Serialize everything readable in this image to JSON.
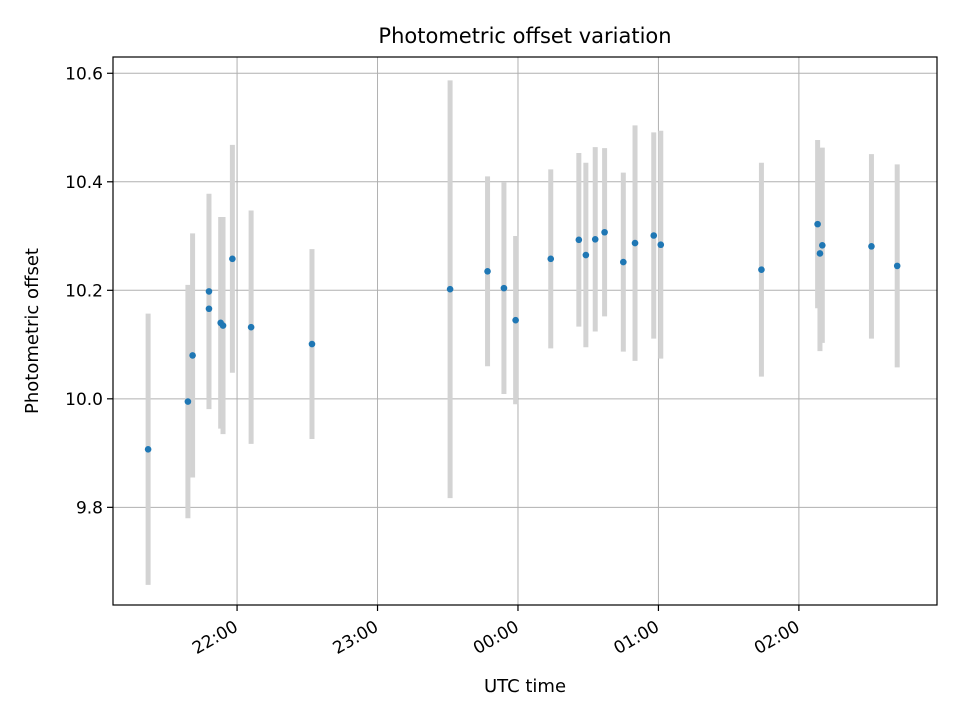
{
  "chart_data": {
    "type": "scatter",
    "title": "Photometric offset variation",
    "xlabel": "UTC time",
    "ylabel": "Photometric offset",
    "x_axis_format": "time (HH:MM, UTC)",
    "xlim": [
      "21:07",
      "02:59"
    ],
    "ylim": [
      9.62,
      10.63
    ],
    "x_ticks": [
      "22:00",
      "23:00",
      "00:00",
      "01:00",
      "02:00"
    ],
    "y_ticks": [
      9.8,
      10.0,
      10.2,
      10.4,
      10.6
    ],
    "grid": true,
    "legend": "none",
    "marker_color": "#1f77b4",
    "errorbar_color": "#d3d3d3",
    "points": [
      {
        "x": "21:22",
        "y": 9.907,
        "err": 0.25
      },
      {
        "x": "21:39",
        "y": 9.995,
        "err": 0.215
      },
      {
        "x": "21:41",
        "y": 10.08,
        "err": 0.225
      },
      {
        "x": "21:48",
        "y": 10.198,
        "err": 0.18
      },
      {
        "x": "21:48",
        "y": 10.166,
        "err": 0.185
      },
      {
        "x": "21:53",
        "y": 10.14,
        "err": 0.195
      },
      {
        "x": "21:54",
        "y": 10.135,
        "err": 0.2
      },
      {
        "x": "21:58",
        "y": 10.258,
        "err": 0.21
      },
      {
        "x": "22:06",
        "y": 10.132,
        "err": 0.215
      },
      {
        "x": "22:32",
        "y": 10.101,
        "err": 0.175
      },
      {
        "x": "23:31",
        "y": 10.202,
        "err": 0.385
      },
      {
        "x": "23:47",
        "y": 10.235,
        "err": 0.175
      },
      {
        "x": "23:54",
        "y": 10.204,
        "err": 0.195
      },
      {
        "x": "23:59",
        "y": 10.145,
        "err": 0.155
      },
      {
        "x": "00:14",
        "y": 10.258,
        "err": 0.165
      },
      {
        "x": "00:26",
        "y": 10.293,
        "err": 0.16
      },
      {
        "x": "00:29",
        "y": 10.265,
        "err": 0.17
      },
      {
        "x": "00:33",
        "y": 10.294,
        "err": 0.17
      },
      {
        "x": "00:37",
        "y": 10.307,
        "err": 0.155
      },
      {
        "x": "00:45",
        "y": 10.252,
        "err": 0.165
      },
      {
        "x": "00:50",
        "y": 10.287,
        "err": 0.217
      },
      {
        "x": "00:58",
        "y": 10.301,
        "err": 0.19
      },
      {
        "x": "01:01",
        "y": 10.284,
        "err": 0.21
      },
      {
        "x": "01:44",
        "y": 10.238,
        "err": 0.197
      },
      {
        "x": "02:08",
        "y": 10.322,
        "err": 0.155
      },
      {
        "x": "02:09",
        "y": 10.268,
        "err": 0.18
      },
      {
        "x": "02:10",
        "y": 10.283,
        "err": 0.18
      },
      {
        "x": "02:31",
        "y": 10.281,
        "err": 0.17
      },
      {
        "x": "02:42",
        "y": 10.245,
        "err": 0.187
      }
    ]
  }
}
